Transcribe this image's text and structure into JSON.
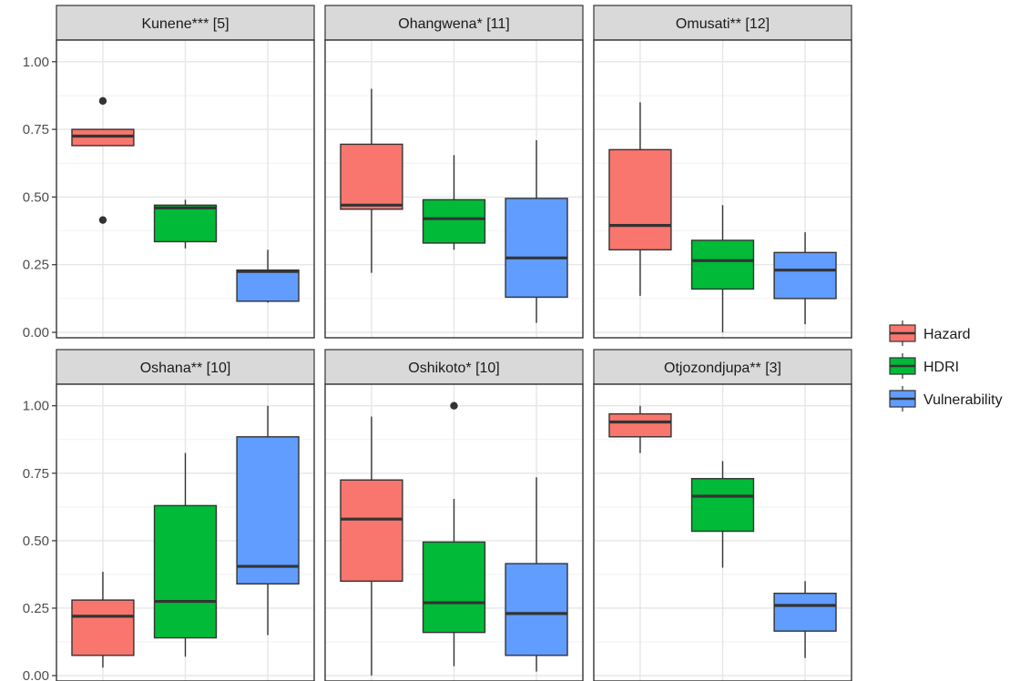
{
  "chart_data": {
    "type": "box",
    "facet_layout": "2x3 grid",
    "y_ticks": [
      "0.00",
      "0.25",
      "0.50",
      "0.75",
      "1.00"
    ],
    "y_tick_values": [
      0,
      0.25,
      0.5,
      0.75,
      1.0
    ],
    "ylim": [
      -0.02,
      1.08
    ],
    "grid": true,
    "legend_position": "right",
    "series": [
      {
        "name": "Hazard",
        "color": "#F8766D"
      },
      {
        "name": "HDRI",
        "color": "#00BA38"
      },
      {
        "name": "Vulnerability",
        "color": "#619CFF"
      }
    ],
    "panels": [
      {
        "title": "Kunene*** [5]",
        "boxes": [
          {
            "series": "Hazard",
            "whisker_low": 0.69,
            "q1": 0.69,
            "median": 0.725,
            "q3": 0.75,
            "whisker_high": 0.75,
            "outliers": [
              0.855,
              0.415
            ]
          },
          {
            "series": "HDRI",
            "whisker_low": 0.31,
            "q1": 0.335,
            "median": 0.46,
            "q3": 0.47,
            "whisker_high": 0.49,
            "outliers": []
          },
          {
            "series": "Vulnerability",
            "whisker_low": 0.11,
            "q1": 0.115,
            "median": 0.225,
            "q3": 0.23,
            "whisker_high": 0.305,
            "outliers": []
          }
        ]
      },
      {
        "title": "Ohangwena* [11]",
        "boxes": [
          {
            "series": "Hazard",
            "whisker_low": 0.22,
            "q1": 0.455,
            "median": 0.47,
            "q3": 0.695,
            "whisker_high": 0.9,
            "outliers": []
          },
          {
            "series": "HDRI",
            "whisker_low": 0.305,
            "q1": 0.33,
            "median": 0.42,
            "q3": 0.49,
            "whisker_high": 0.655,
            "outliers": []
          },
          {
            "series": "Vulnerability",
            "whisker_low": 0.035,
            "q1": 0.13,
            "median": 0.275,
            "q3": 0.495,
            "whisker_high": 0.71,
            "outliers": []
          }
        ]
      },
      {
        "title": "Omusati** [12]",
        "boxes": [
          {
            "series": "Hazard",
            "whisker_low": 0.135,
            "q1": 0.305,
            "median": 0.395,
            "q3": 0.675,
            "whisker_high": 0.85,
            "outliers": []
          },
          {
            "series": "HDRI",
            "whisker_low": 0.0,
            "q1": 0.16,
            "median": 0.265,
            "q3": 0.34,
            "whisker_high": 0.47,
            "outliers": []
          },
          {
            "series": "Vulnerability",
            "whisker_low": 0.03,
            "q1": 0.125,
            "median": 0.23,
            "q3": 0.295,
            "whisker_high": 0.37,
            "outliers": []
          }
        ]
      },
      {
        "title": "Oshana** [10]",
        "boxes": [
          {
            "series": "Hazard",
            "whisker_low": 0.03,
            "q1": 0.075,
            "median": 0.22,
            "q3": 0.28,
            "whisker_high": 0.385,
            "outliers": []
          },
          {
            "series": "HDRI",
            "whisker_low": 0.07,
            "q1": 0.14,
            "median": 0.275,
            "q3": 0.63,
            "whisker_high": 0.825,
            "outliers": []
          },
          {
            "series": "Vulnerability",
            "whisker_low": 0.15,
            "q1": 0.34,
            "median": 0.405,
            "q3": 0.885,
            "whisker_high": 1.0,
            "outliers": []
          }
        ]
      },
      {
        "title": "Oshikoto* [10]",
        "boxes": [
          {
            "series": "Hazard",
            "whisker_low": 0.0,
            "q1": 0.35,
            "median": 0.58,
            "q3": 0.725,
            "whisker_high": 0.96,
            "outliers": []
          },
          {
            "series": "HDRI",
            "whisker_low": 0.035,
            "q1": 0.16,
            "median": 0.27,
            "q3": 0.495,
            "whisker_high": 0.655,
            "outliers": [
              1.0
            ]
          },
          {
            "series": "Vulnerability",
            "whisker_low": 0.015,
            "q1": 0.075,
            "median": 0.23,
            "q3": 0.415,
            "whisker_high": 0.735,
            "outliers": []
          }
        ]
      },
      {
        "title": "Otjozondjupa** [3]",
        "boxes": [
          {
            "series": "Hazard",
            "whisker_low": 0.825,
            "q1": 0.885,
            "median": 0.94,
            "q3": 0.97,
            "whisker_high": 1.0,
            "outliers": []
          },
          {
            "series": "HDRI",
            "whisker_low": 0.4,
            "q1": 0.535,
            "median": 0.665,
            "q3": 0.73,
            "whisker_high": 0.795,
            "outliers": []
          },
          {
            "series": "Vulnerability",
            "whisker_low": 0.065,
            "q1": 0.165,
            "median": 0.26,
            "q3": 0.305,
            "whisker_high": 0.35,
            "outliers": []
          }
        ]
      }
    ]
  }
}
